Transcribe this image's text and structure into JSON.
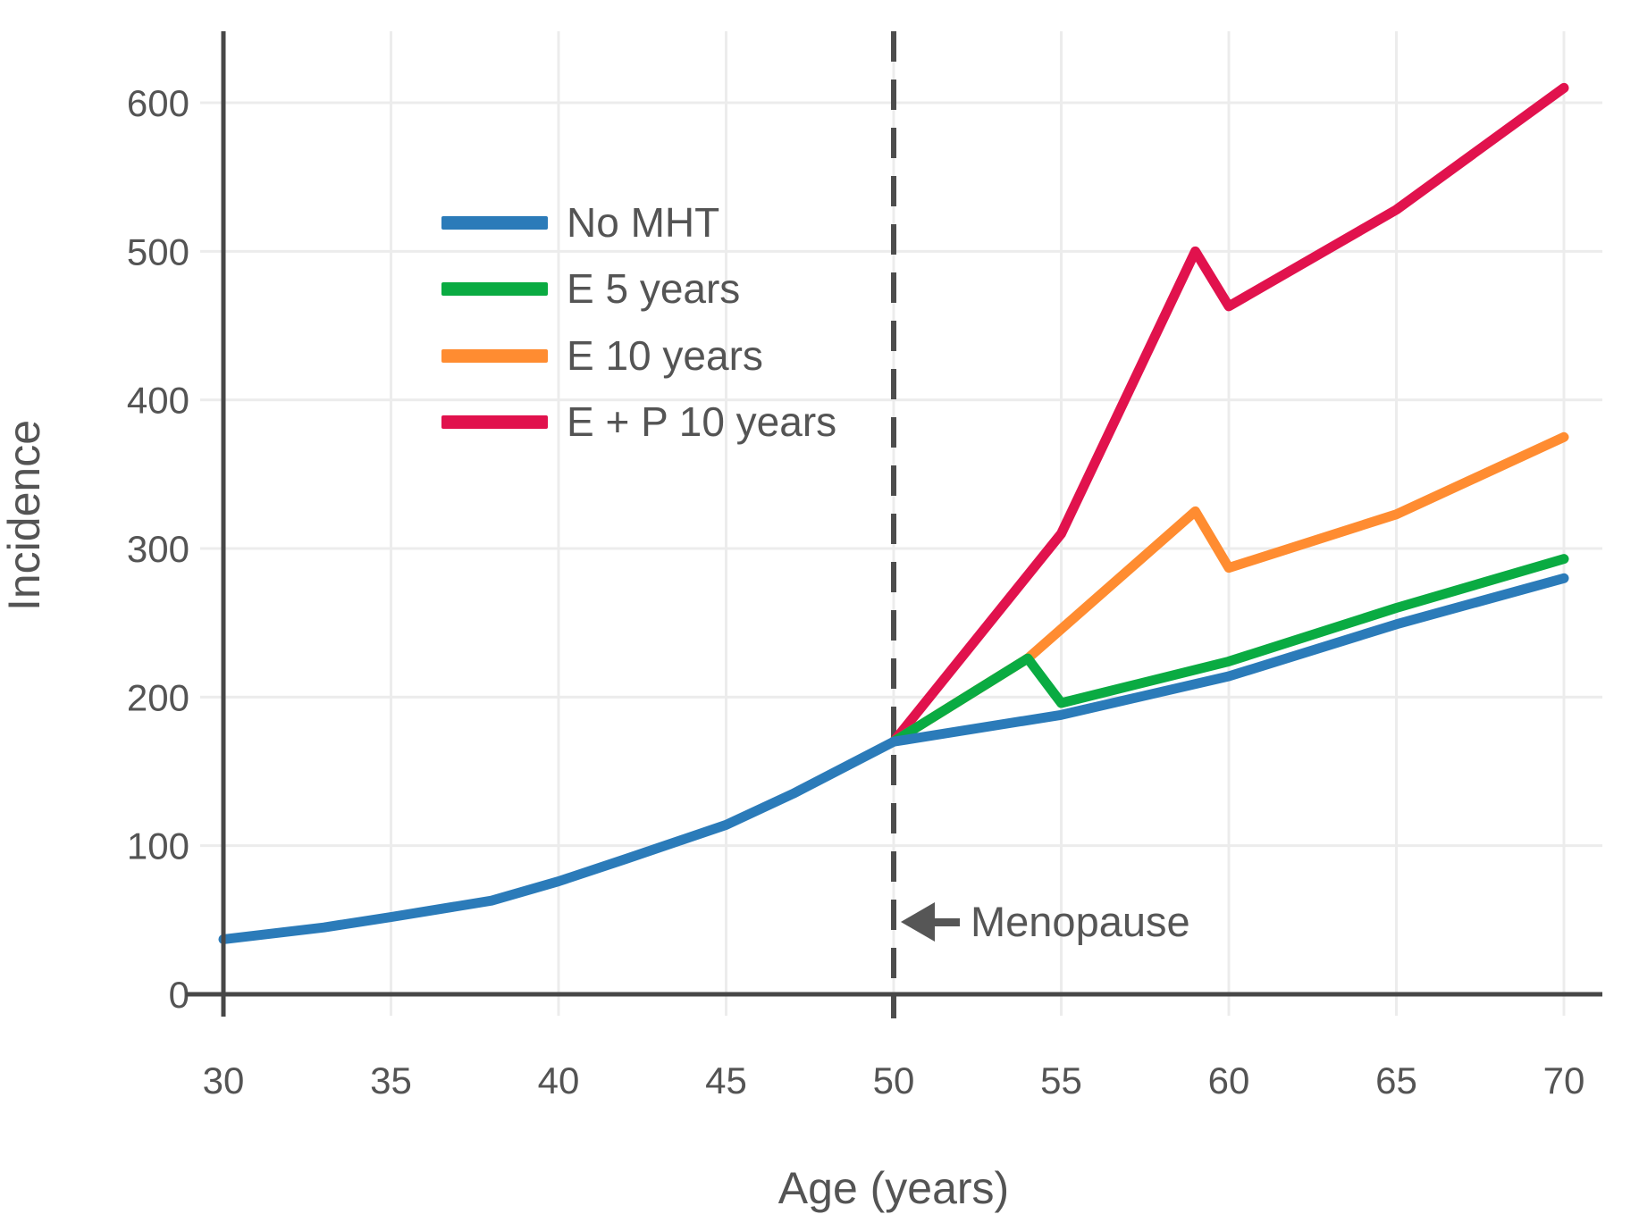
{
  "chart_data": {
    "type": "line",
    "title": "",
    "xlabel": "Age (years)",
    "ylabel": "Incidence",
    "xticks": [
      30,
      35,
      40,
      45,
      50,
      55,
      60,
      65,
      70
    ],
    "yticks": [
      0,
      100,
      200,
      300,
      400,
      500,
      600
    ],
    "xlim": [
      30,
      70
    ],
    "ylim": [
      0,
      648
    ],
    "grid": true,
    "legend_position": "upper left inside",
    "annotation": {
      "label": "Menopause",
      "x": 50,
      "arrow_direction": "left"
    },
    "series": [
      {
        "name": "No MHT",
        "color": "#2b7bb9",
        "points": [
          [
            30,
            37
          ],
          [
            33,
            45
          ],
          [
            35,
            52
          ],
          [
            38,
            63
          ],
          [
            40,
            76
          ],
          [
            42,
            91
          ],
          [
            45,
            114
          ],
          [
            47,
            135
          ],
          [
            50,
            170
          ],
          [
            55,
            188
          ],
          [
            60,
            214
          ],
          [
            65,
            249
          ],
          [
            70,
            280
          ]
        ]
      },
      {
        "name": "E 5 years",
        "color": "#0aab42",
        "points": [
          [
            50,
            170
          ],
          [
            54,
            226
          ],
          [
            55,
            196
          ],
          [
            60,
            224
          ],
          [
            65,
            260
          ],
          [
            70,
            293
          ]
        ]
      },
      {
        "name": "E 10 years",
        "color": "#ff8c31",
        "points": [
          [
            50,
            170
          ],
          [
            54,
            226
          ],
          [
            59,
            325
          ],
          [
            60,
            287
          ],
          [
            65,
            323
          ],
          [
            70,
            375
          ]
        ]
      },
      {
        "name": "E + P 10 years",
        "color": "#e1124d",
        "points": [
          [
            50,
            170
          ],
          [
            55,
            310
          ],
          [
            59,
            500
          ],
          [
            60,
            463
          ],
          [
            65,
            528
          ],
          [
            70,
            610
          ]
        ]
      }
    ],
    "style_colors": {
      "grid": "#ececec",
      "axis": "#474747",
      "tick_text": "#545454",
      "annotation_text": "#565656",
      "background": "#ffffff"
    }
  }
}
